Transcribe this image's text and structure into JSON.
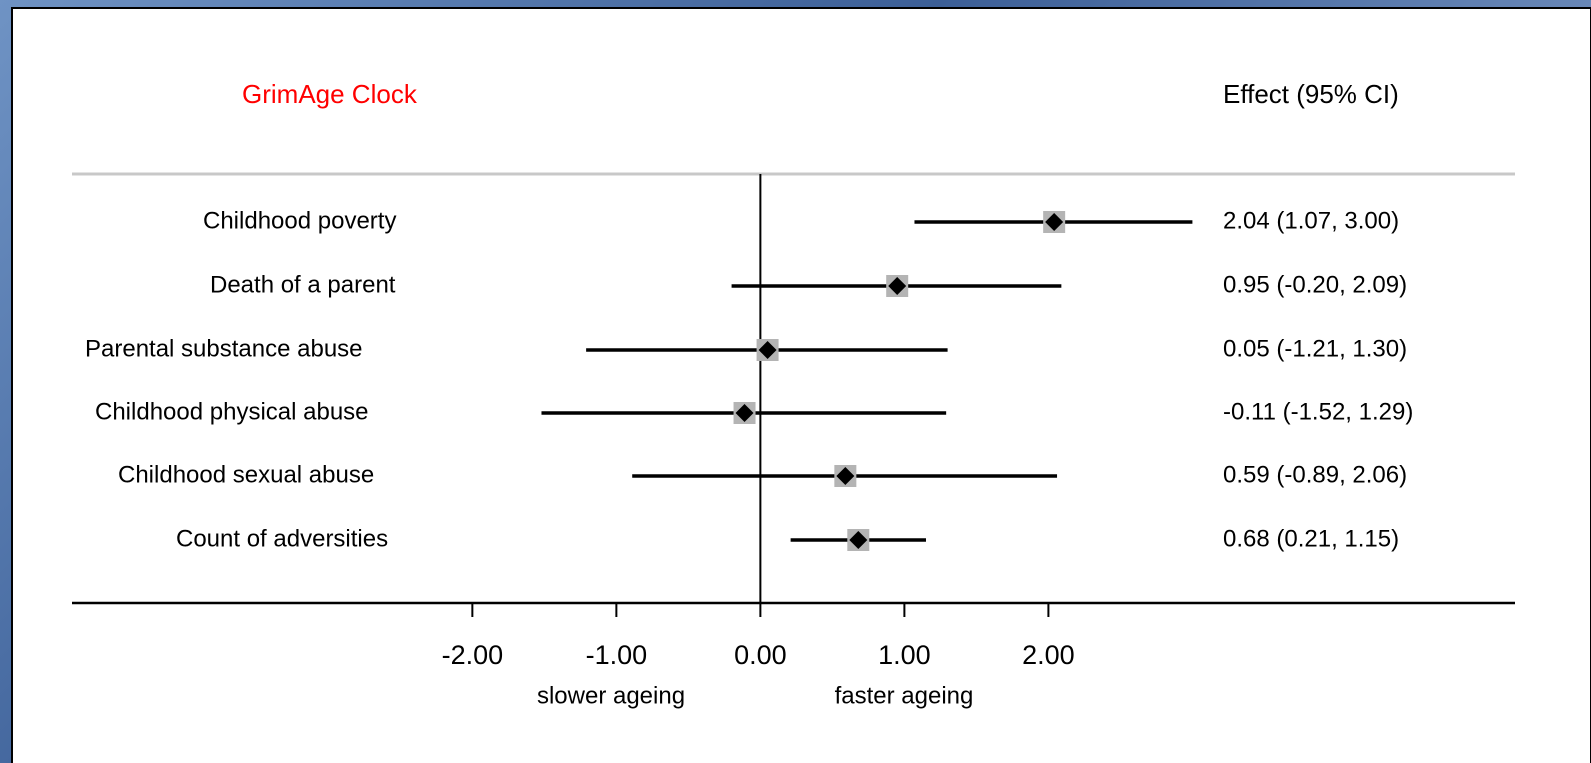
{
  "chart_data": {
    "type": "forest",
    "title": "GrimAge Clock",
    "value_header": "Effect (95% CI)",
    "categories": [
      "Childhood poverty",
      "Death of a parent",
      "Parental substance abuse",
      "Childhood physical abuse",
      "Childhood sexual abuse",
      "Count of adversities"
    ],
    "values": [
      2.04,
      0.95,
      0.05,
      -0.11,
      0.59,
      0.68
    ],
    "lower": [
      1.07,
      -0.2,
      -1.21,
      -1.52,
      -0.89,
      0.21
    ],
    "upper": [
      3.0,
      2.09,
      1.3,
      1.29,
      2.06,
      1.15
    ],
    "value_labels": [
      "2.04 (1.07, 3.00)",
      "0.95 (-0.20, 2.09)",
      "0.05 (-1.21, 1.30)",
      "-0.11 (-1.52, 1.29)",
      "0.59 (-0.89, 2.06)",
      "0.68 (0.21, 1.15)"
    ],
    "color": "#000000",
    "box_color": "#b4b4b4",
    "xlim": [
      -4.78,
      5.24
    ],
    "xticks": [
      {
        "value": -2,
        "label": "-2.00"
      },
      {
        "value": -1,
        "label": "-1.00"
      },
      {
        "value": 0,
        "label": "0.00"
      },
      {
        "value": 1,
        "label": "1.00"
      },
      {
        "value": 2,
        "label": "2.00"
      }
    ],
    "x_left_note": "slower ageing",
    "x_right_note": "faster ageing"
  }
}
